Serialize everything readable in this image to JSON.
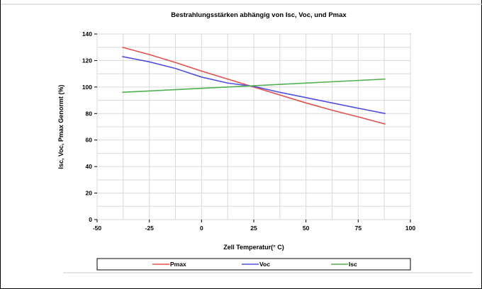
{
  "chart_data": {
    "type": "line",
    "title": "Bestrahlungsstärken abhängig von Isc, Voc, und Pmax",
    "xlabel": "Zell Temperatur(° C)",
    "ylabel": "Isc, Voc, Pmax Genormt (%)",
    "xlim": [
      -50,
      100
    ],
    "ylim": [
      0,
      140
    ],
    "xticks": [
      -50,
      -25,
      0,
      25,
      50,
      75,
      100
    ],
    "yticks": [
      0,
      20,
      40,
      60,
      80,
      100,
      120,
      140
    ],
    "xtick_labels": [
      "-50",
      "-25",
      "0",
      "25",
      "50",
      "75",
      "100"
    ],
    "ytick_labels": [
      "0",
      "20",
      "40",
      "60",
      "80",
      "100",
      "120",
      "140"
    ],
    "grid": true,
    "legend_position": "bottom",
    "series": [
      {
        "name": "Pmax",
        "color": "#e8504a",
        "x": [
          -38,
          -25,
          -12.5,
          0,
          12.5,
          25,
          37.5,
          50,
          62.5,
          75,
          88
        ],
        "y": [
          130,
          124.5,
          118.5,
          112,
          106,
          100,
          94,
          88,
          82.5,
          77.5,
          72
        ]
      },
      {
        "name": "Voc",
        "color": "#5050e8",
        "x": [
          -38,
          -25,
          -12.5,
          0,
          12.5,
          25,
          37.5,
          50,
          62.5,
          75,
          88
        ],
        "y": [
          123,
          119,
          114,
          107.5,
          103,
          100.5,
          96,
          92,
          88,
          84,
          80
        ]
      },
      {
        "name": "Isc",
        "color": "#50b050",
        "x": [
          -38,
          88
        ],
        "y": [
          96,
          106
        ]
      }
    ]
  }
}
